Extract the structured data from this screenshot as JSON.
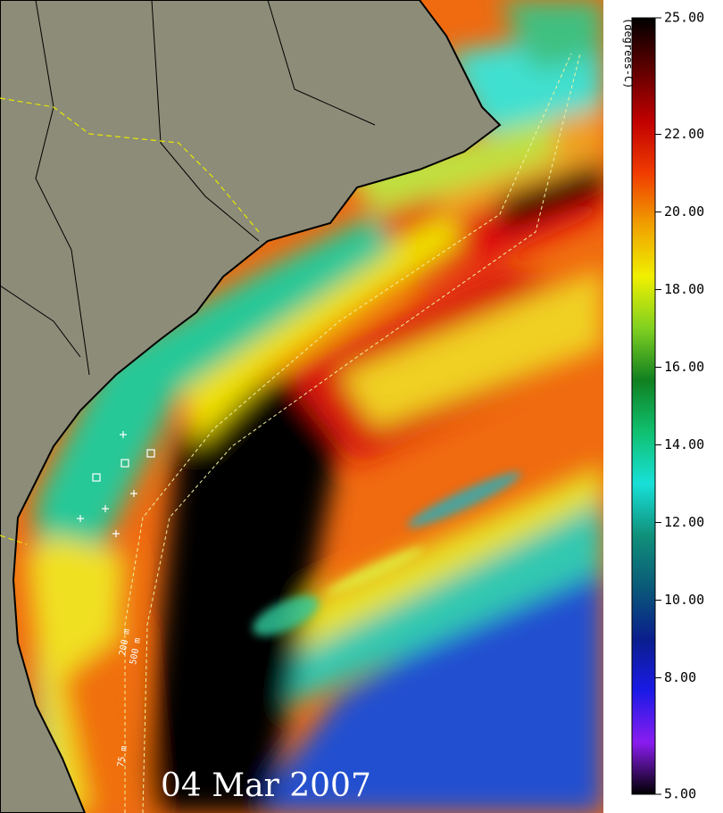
{
  "date": "04 Mar 2007",
  "colorbar": {
    "label": "(degrees-C)",
    "lim": [
      5,
      25
    ],
    "ticks": [
      {
        "value": 25,
        "label": "25.00"
      },
      {
        "value": 22,
        "label": "22.00"
      },
      {
        "value": 20,
        "label": "20.00"
      },
      {
        "value": 18,
        "label": "18.00"
      },
      {
        "value": 16,
        "label": "16.00"
      },
      {
        "value": 14,
        "label": "14.00"
      },
      {
        "value": 12,
        "label": "12.00"
      },
      {
        "value": 10,
        "label": "10.00"
      },
      {
        "value": 8,
        "label": "8.00"
      },
      {
        "value": 5,
        "label": "5.00"
      }
    ],
    "colors": [
      "#000000",
      "#8a1cf0",
      "#1a1ae6",
      "#0a1e8c",
      "#0a5a78",
      "#10907a",
      "#18e0d8",
      "#10c070",
      "#108020",
      "#80d020",
      "#f0f000",
      "#f0a000",
      "#f03c00",
      "#c00000",
      "#600000",
      "#000000"
    ]
  },
  "contour_labels": [
    "200 m",
    "500 m",
    "75 m"
  ]
}
